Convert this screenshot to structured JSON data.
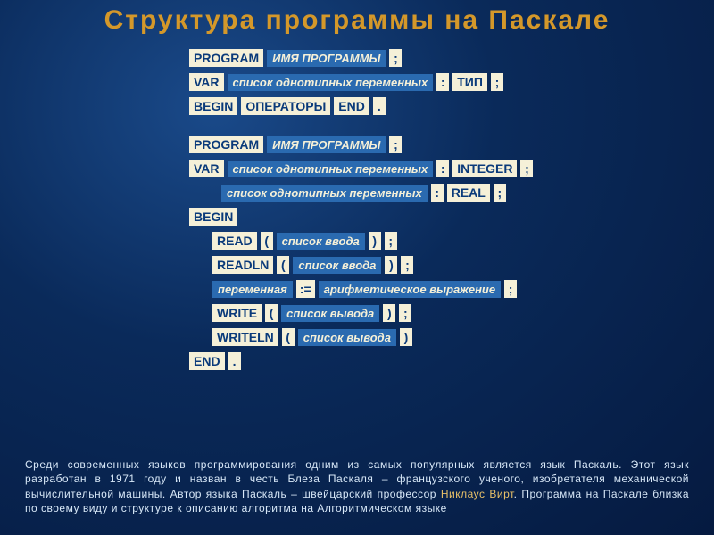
{
  "title": "Структура программы на Паскале",
  "kw": {
    "program": "PROGRAM",
    "var": "VAR",
    "begin": "BEGIN",
    "end": "END",
    "operators": "ОПЕРАТОРЫ",
    "type": "ТИП",
    "integer": "INTEGER",
    "real": "REAL",
    "read": "READ",
    "readln": "READLN",
    "write": "WRITE",
    "writeln": "WRITELN"
  },
  "ph": {
    "progname": "ИМЯ ПРОГРАММЫ",
    "varlist": "список однотипных переменных",
    "inputlist": "список ввода",
    "outputlist": "список вывода",
    "variable": "переменная",
    "expr": "арифметическое выражение"
  },
  "sym": {
    "semi": ";",
    "colon": ":",
    "dot": ".",
    "lpar": "(",
    "rpar": ")",
    "assign": ":="
  },
  "footer": {
    "t1": "Среди современных языков программирования одним из самых популярных является язык Паскаль. Этот язык разработан в 1971 году и назван в честь Блеза Паскаля – французского ученого, изобретателя механической вычислительной машины. Автор языка Паскаль – швейцарский профессор ",
    "hl": "Никлаус Вирт",
    "t2": ". Программа на Паскале близка по своему виду и структуре к описанию алгоритма на Алгоритмическом языке"
  },
  "colors": {
    "title": "#d4982a",
    "kw_bg": "#f5f0d8",
    "kw_fg": "#0a3a7a",
    "ph_bg": "#2a6ab0",
    "ph_fg": "#f5f0d8",
    "footer_fg": "#d8e8f8",
    "footer_hl": "#e8c068"
  }
}
